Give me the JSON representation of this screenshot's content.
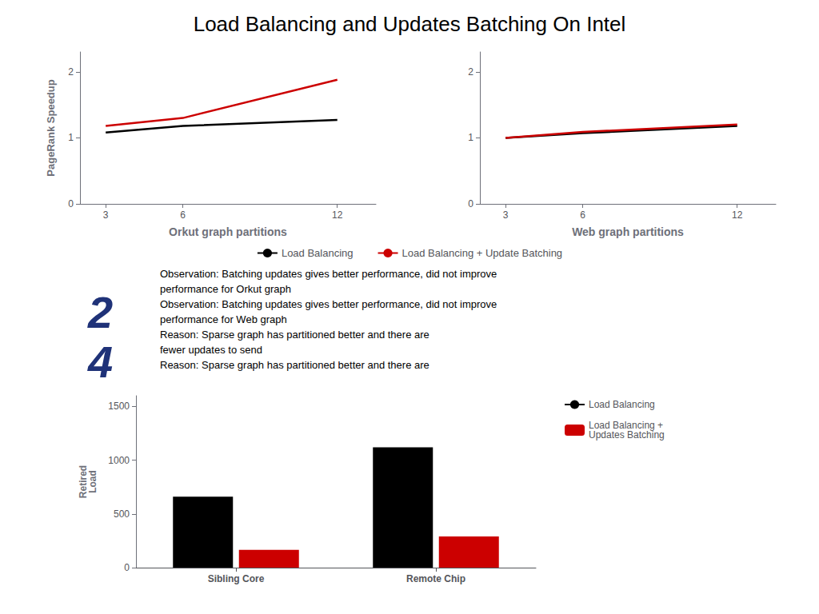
{
  "title": "Load Balancing and Updates Batching On Intel",
  "annotations": [
    "2",
    "4",
    "Observation: Batching updates gives better performance, did not improve",
    "performance for Orkut graph",
    "Observation: Batching updates gives better performance, did not improve",
    "performance for Web graph",
    "Reason: Sparse graph has partitioned better and there are",
    "fewer updates to send",
    "Reason: Sparse graph has partitioned better and there are"
  ],
  "chart_data": [
    {
      "type": "line",
      "xlabel": "Orkut graph partitions",
      "ylabel": "PageRank Speedup",
      "x": [
        3,
        6,
        12
      ],
      "series": [
        {
          "name": "Load Balancing",
          "color": "#000000",
          "values": [
            1.08,
            1.18,
            1.27
          ]
        },
        {
          "name": "Load Balancing + Update Batching",
          "color": "#cc0000",
          "values": [
            1.18,
            1.3,
            1.88
          ]
        }
      ],
      "xlim": [
        2,
        13.5
      ],
      "xticks": [
        3,
        6,
        12
      ],
      "ylim": [
        0,
        2.3
      ],
      "yticks": [
        0,
        1,
        2
      ],
      "grid": false,
      "legend": "bottom"
    },
    {
      "type": "line",
      "xlabel": "Web graph partitions",
      "x": [
        3,
        6,
        12
      ],
      "series": [
        {
          "name": "Load Balancing",
          "color": "#000000",
          "values": [
            1.0,
            1.07,
            1.18
          ]
        },
        {
          "name": "Load Balancing + Update Batching",
          "color": "#cc0000",
          "values": [
            1.0,
            1.09,
            1.2
          ]
        }
      ],
      "xlim": [
        2,
        13.5
      ],
      "xticks": [
        3,
        6,
        12
      ],
      "ylim": [
        0,
        2.3
      ],
      "yticks": [
        0,
        1,
        2
      ],
      "grid": false
    },
    {
      "type": "bar",
      "ylabel": "Retired\nLoad",
      "categories": [
        "Sibling Core",
        "Remote Chip"
      ],
      "series": [
        {
          "name": "Load Balancing",
          "color": "#000000",
          "values": [
            660,
            1120
          ]
        },
        {
          "name": "Load Balancing +\nUpdates Batching",
          "color": "#cc0000",
          "values": [
            165,
            290
          ]
        }
      ],
      "ylim": [
        0,
        1600
      ],
      "yticks": [
        0,
        500,
        1000,
        1500
      ],
      "grid": false,
      "legend": "right"
    }
  ]
}
